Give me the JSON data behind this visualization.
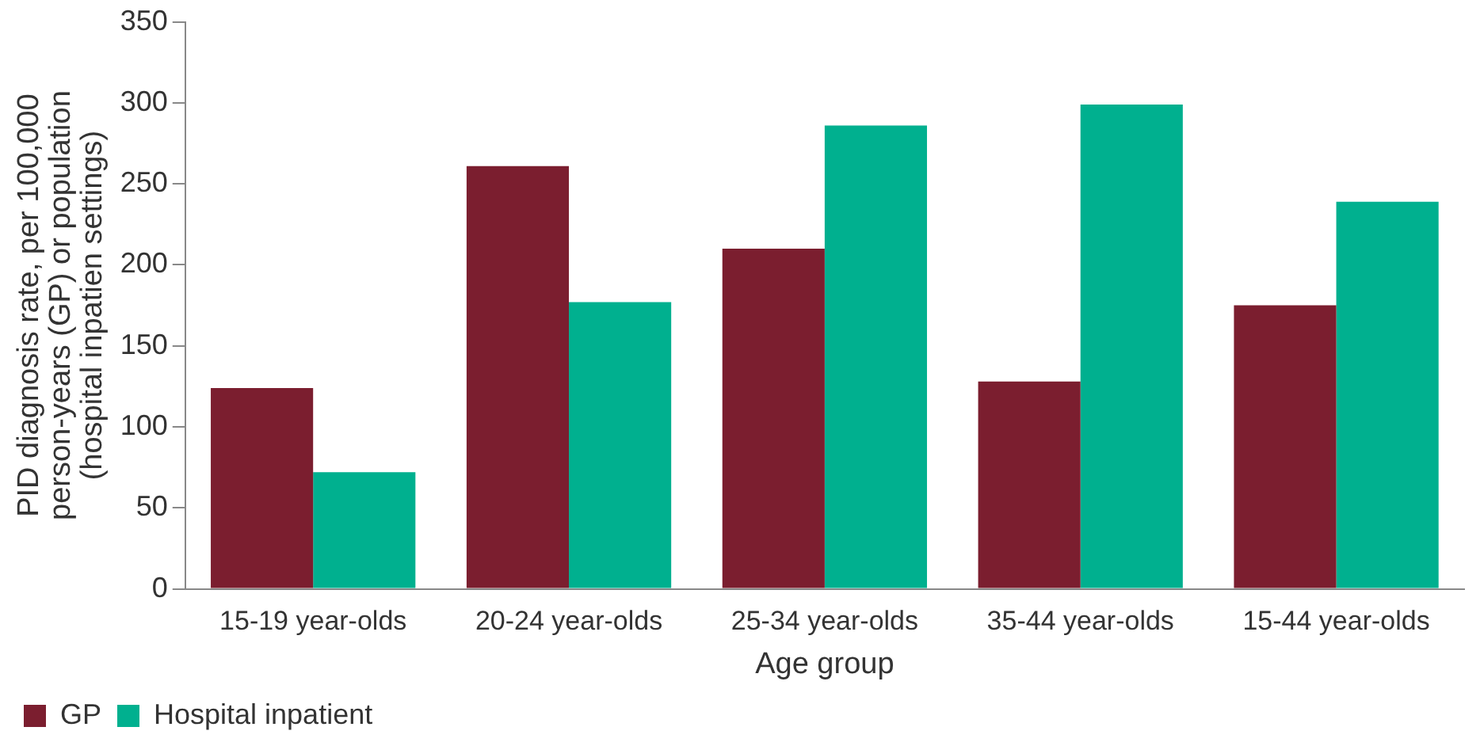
{
  "chart_data": {
    "type": "bar",
    "xlabel": "Age group",
    "ylabel": "PID diagnosis rate, per 100,000 person-years (GP) or population (hospital inpatien settings)",
    "categories": [
      "15-19 year-olds",
      "20-24 year-olds",
      "25-34 year-olds",
      "35-44 year-olds",
      "15-44 year-olds"
    ],
    "series": [
      {
        "name": "GP",
        "color": "#7b1e2f",
        "values": [
          124,
          261,
          210,
          128,
          175
        ]
      },
      {
        "name": "Hospital inpatient",
        "color": "#00b08f",
        "values": [
          72,
          177,
          286,
          299,
          239
        ]
      }
    ],
    "ylim": [
      0,
      350
    ],
    "yticks": [
      0,
      50,
      100,
      150,
      200,
      250,
      300,
      350
    ],
    "grid": false,
    "legend": "bottom left"
  }
}
